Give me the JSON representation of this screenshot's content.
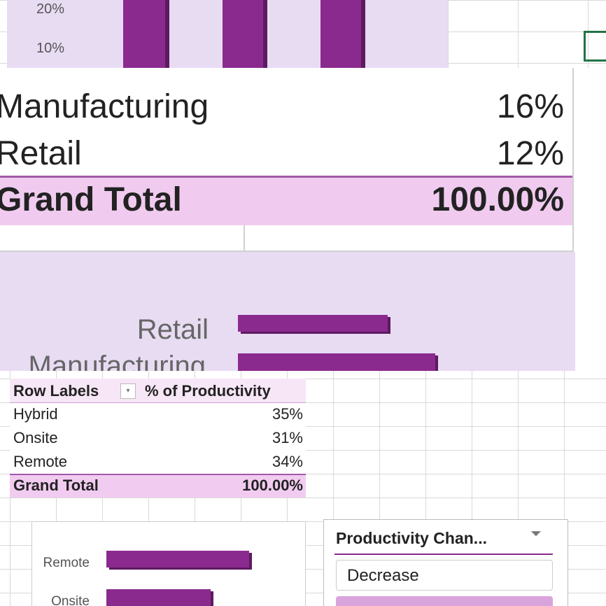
{
  "top_chart": {
    "ticks": [
      "20%",
      "10%"
    ]
  },
  "zoom_table": {
    "rows": [
      [
        "Manufacturing",
        "16%"
      ],
      [
        "Retail",
        "12%"
      ]
    ],
    "total": [
      "Grand Total",
      "100.00%"
    ]
  },
  "zoom_chart": {
    "labels": [
      "Retail",
      "Manufacturing"
    ]
  },
  "pivot_table": {
    "header": [
      "Row Labels",
      "% of Productivity"
    ],
    "rows": [
      [
        "Hybrid",
        "35%"
      ],
      [
        "Onsite",
        "31%"
      ],
      [
        "Remote",
        "34%"
      ]
    ],
    "total": [
      "Grand Total",
      "100.00%"
    ]
  },
  "bottom_chart": {
    "labels": [
      "Remote",
      "Onsite"
    ]
  },
  "slicer": {
    "title": "Productivity Chan...",
    "items": [
      "Decrease"
    ]
  }
}
